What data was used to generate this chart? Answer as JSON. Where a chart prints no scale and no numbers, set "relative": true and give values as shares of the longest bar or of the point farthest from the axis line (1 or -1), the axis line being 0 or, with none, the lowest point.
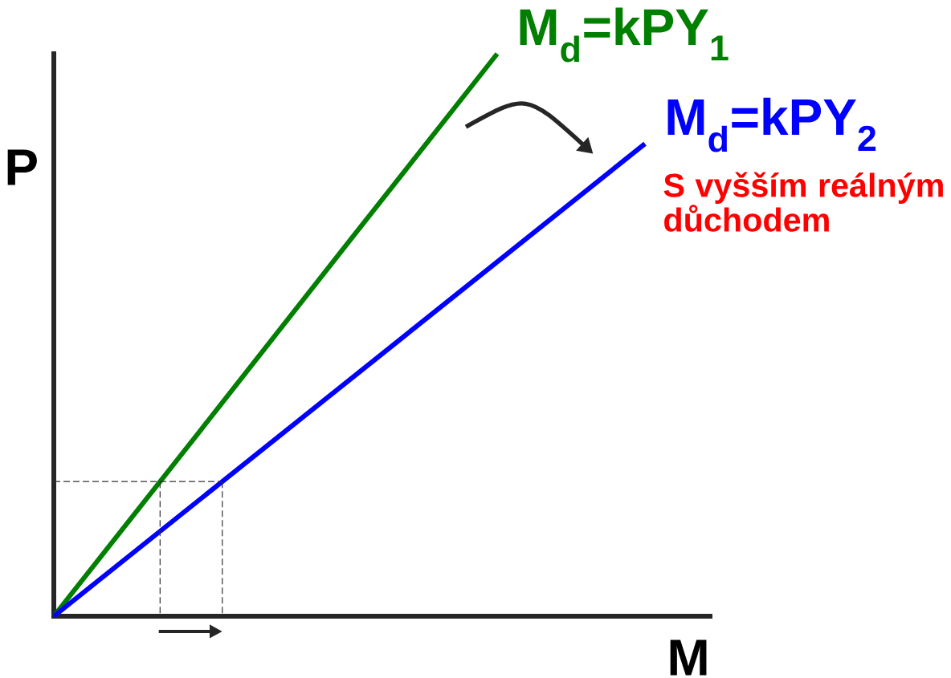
{
  "chart_data": {
    "type": "line",
    "relative": true,
    "xlabel": "M",
    "ylabel": "P",
    "marker": "none",
    "categories": [
      null,
      null,
      null,
      null,
      null
    ],
    "annotations": [
      "S vyšším reálným důchodem"
    ],
    "series": [
      {
        "name": "M$_{d}$=kPY$_{1}$",
        "color": "#007f00",
        "values": [
          0,
          0.333,
          0.667,
          1,
          null
        ]
      },
      {
        "name": "M$_{d}$=kPY$_{2}$",
        "color": "#0000ff",
        "values": [
          0,
          0.21,
          0.42,
          0.63,
          0.84
        ]
      }
    ]
  }
}
